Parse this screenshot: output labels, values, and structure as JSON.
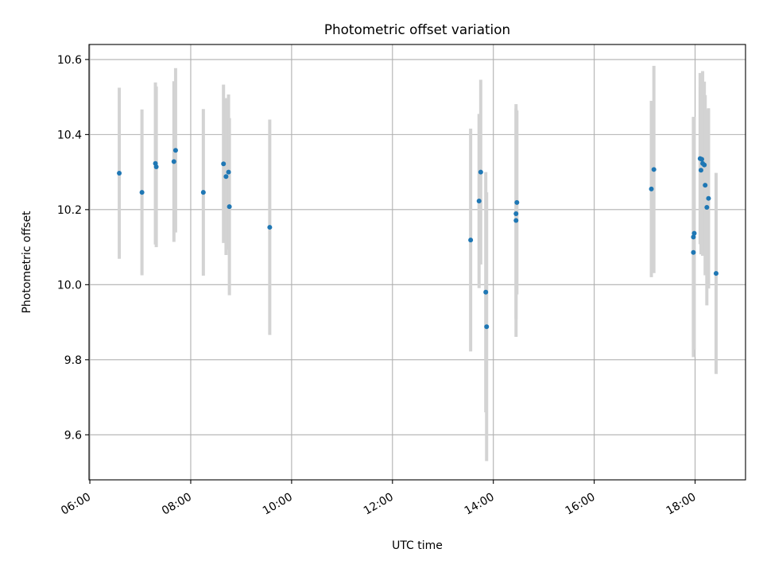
{
  "chart_data": {
    "type": "scatter",
    "title": "Photometric offset variation",
    "xlabel": "UTC time",
    "ylabel": "Photometric offset",
    "x_ticks": [
      "06:00",
      "08:00",
      "10:00",
      "12:00",
      "14:00",
      "16:00",
      "18:00"
    ],
    "x_tick_hours": [
      6,
      8,
      10,
      12,
      14,
      16,
      18
    ],
    "y_ticks": [
      "9.6",
      "9.8",
      "10.0",
      "10.2",
      "10.4",
      "10.6"
    ],
    "y_tick_values": [
      9.6,
      9.8,
      10.0,
      10.2,
      10.4,
      10.6
    ],
    "xlim": [
      "05:59",
      "19:00"
    ],
    "ylim": [
      9.48,
      10.64
    ],
    "grid": true,
    "legend": "none",
    "point_color": "#1f77b4",
    "errorbar_color": "#d3d3d3",
    "points": [
      {
        "x": "06:35",
        "y": 10.297,
        "err": 0.228
      },
      {
        "x": "07:02",
        "y": 10.246,
        "err": 0.221
      },
      {
        "x": "07:18",
        "y": 10.323,
        "err": 0.216
      },
      {
        "x": "07:19",
        "y": 10.314,
        "err": 0.214
      },
      {
        "x": "07:40",
        "y": 10.328,
        "err": 0.214
      },
      {
        "x": "07:42",
        "y": 10.358,
        "err": 0.219
      },
      {
        "x": "08:15",
        "y": 10.246,
        "err": 0.222
      },
      {
        "x": "08:39",
        "y": 10.322,
        "err": 0.211
      },
      {
        "x": "08:42",
        "y": 10.288,
        "err": 0.209
      },
      {
        "x": "08:45",
        "y": 10.3,
        "err": 0.207
      },
      {
        "x": "08:46",
        "y": 10.208,
        "err": 0.236
      },
      {
        "x": "09:34",
        "y": 10.153,
        "err": 0.287
      },
      {
        "x": "13:33",
        "y": 10.119,
        "err": 0.297
      },
      {
        "x": "13:43",
        "y": 10.223,
        "err": 0.232
      },
      {
        "x": "13:45",
        "y": 10.3,
        "err": 0.246
      },
      {
        "x": "13:51",
        "y": 9.98,
        "err": 0.32
      },
      {
        "x": "13:52",
        "y": 9.888,
        "err": 0.358
      },
      {
        "x": "14:27",
        "y": 10.189,
        "err": 0.28
      },
      {
        "x": "14:27",
        "y": 10.171,
        "err": 0.31
      },
      {
        "x": "14:28",
        "y": 10.219,
        "err": 0.245
      },
      {
        "x": "17:08",
        "y": 10.255,
        "err": 0.235
      },
      {
        "x": "17:11",
        "y": 10.307,
        "err": 0.276
      },
      {
        "x": "17:58",
        "y": 10.086,
        "err": 0.24
      },
      {
        "x": "17:58",
        "y": 10.127,
        "err": 0.32
      },
      {
        "x": "17:59",
        "y": 10.137,
        "err": 0.31
      },
      {
        "x": "18:06",
        "y": 10.336,
        "err": 0.228
      },
      {
        "x": "18:07",
        "y": 10.305,
        "err": 0.224
      },
      {
        "x": "18:08",
        "y": 10.334,
        "err": 0.23
      },
      {
        "x": "18:09",
        "y": 10.323,
        "err": 0.246
      },
      {
        "x": "18:11",
        "y": 10.319,
        "err": 0.222
      },
      {
        "x": "18:12",
        "y": 10.265,
        "err": 0.24
      },
      {
        "x": "18:14",
        "y": 10.206,
        "err": 0.261
      },
      {
        "x": "18:16",
        "y": 10.23,
        "err": 0.24
      },
      {
        "x": "18:25",
        "y": 10.03,
        "err": 0.268
      }
    ]
  }
}
